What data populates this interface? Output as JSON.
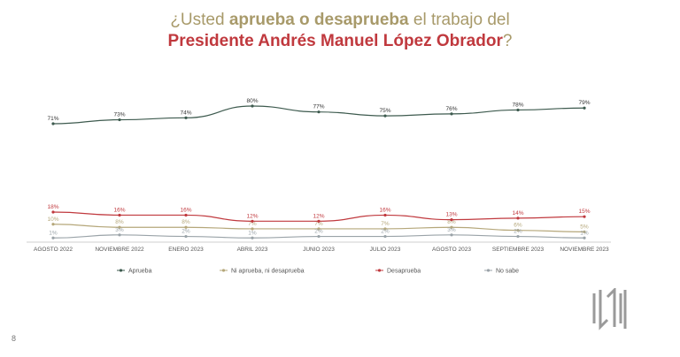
{
  "title": {
    "line1_pre": "¿Usted ",
    "line1_bold": "aprueba o desaprueba",
    "line1_post": " el trabajo del",
    "line2": "Presidente Andrés Manuel López Obrador",
    "line2_q": "?"
  },
  "page_number": "8",
  "chart_data": {
    "type": "line",
    "categories": [
      "AGOSTO 2022",
      "NOVIEMBRE 2022",
      "ENERO 2023",
      "ABRIL 2023",
      "JUNIO 2023",
      "JULIO 2023",
      "AGOSTO 2023",
      "SEPTIEMBRE 2023",
      "NOVIEMBRE 2023"
    ],
    "series": [
      {
        "name": "Aprueba",
        "color": "#3d5a4e",
        "values": [
          71,
          73,
          74,
          80,
          77,
          75,
          76,
          78,
          79
        ]
      },
      {
        "name": "Ni aprueba, ni desaprueba",
        "color": "#b5a77a",
        "values": [
          10,
          8,
          8,
          7,
          7,
          7,
          8,
          6,
          5
        ]
      },
      {
        "name": "Desaprueba",
        "color": "#c0393e",
        "values": [
          18,
          16,
          16,
          12,
          12,
          16,
          13,
          14,
          15
        ]
      },
      {
        "name": "No sabe",
        "color": "#9aa3a8",
        "values": [
          1,
          3,
          2,
          1,
          2,
          2,
          3,
          2,
          1
        ]
      }
    ],
    "value_suffix": "%",
    "legend": "bottom",
    "grid": false
  }
}
